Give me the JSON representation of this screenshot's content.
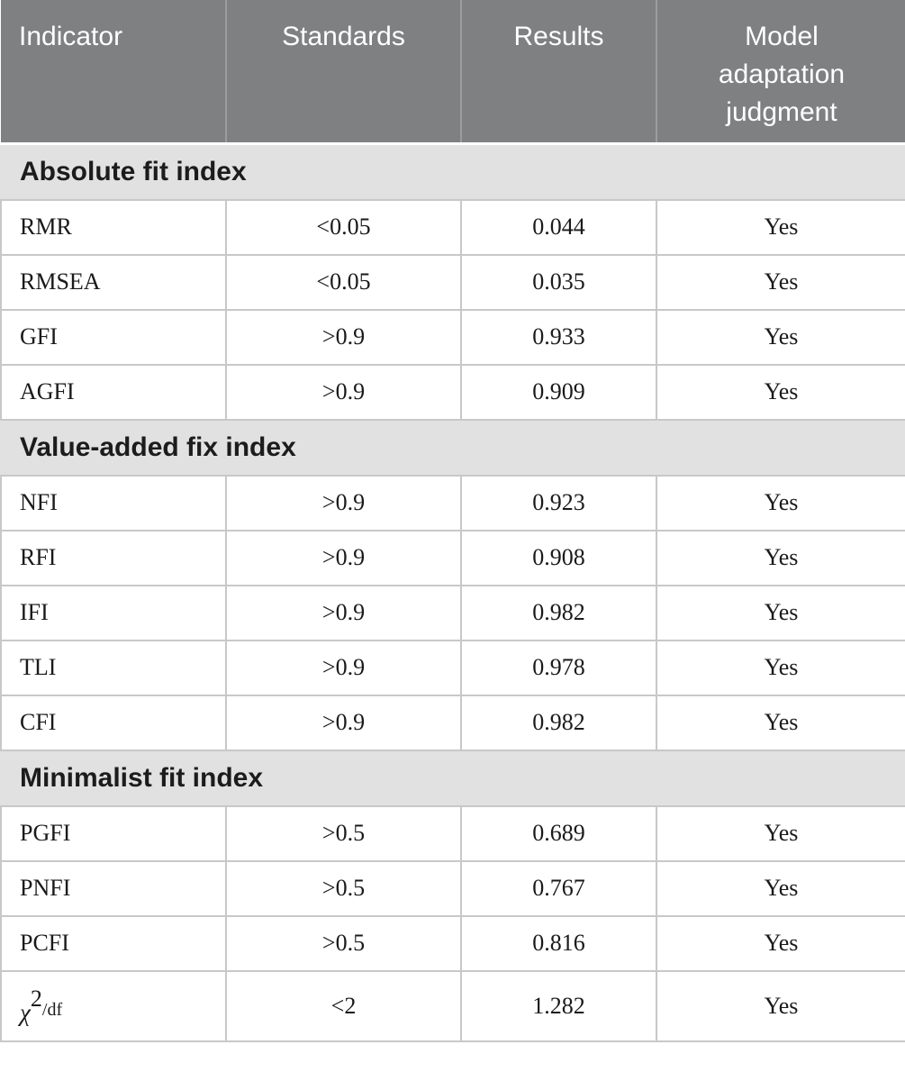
{
  "table": {
    "header": {
      "columns": [
        "Indicator",
        "Standards",
        "Results",
        "Model adaptation judgment"
      ]
    },
    "sections": [
      {
        "title": "Absolute fit index",
        "rows": [
          {
            "indicator": "RMR",
            "standard": "<0.05",
            "result": "0.044",
            "judgment": "Yes"
          },
          {
            "indicator": "RMSEA",
            "standard": "<0.05",
            "result": "0.035",
            "judgment": "Yes"
          },
          {
            "indicator": "GFI",
            "standard": ">0.9",
            "result": "0.933",
            "judgment": "Yes"
          },
          {
            "indicator": "AGFI",
            "standard": ">0.9",
            "result": "0.909",
            "judgment": "Yes"
          }
        ]
      },
      {
        "title": "Value-added fix index",
        "rows": [
          {
            "indicator": "NFI",
            "standard": ">0.9",
            "result": "0.923",
            "judgment": "Yes"
          },
          {
            "indicator": "RFI",
            "standard": ">0.9",
            "result": "0.908",
            "judgment": "Yes"
          },
          {
            "indicator": "IFI",
            "standard": ">0.9",
            "result": "0.982",
            "judgment": "Yes"
          },
          {
            "indicator": "TLI",
            "standard": ">0.9",
            "result": "0.978",
            "judgment": "Yes"
          },
          {
            "indicator": "CFI",
            "standard": ">0.9",
            "result": "0.982",
            "judgment": "Yes"
          }
        ]
      },
      {
        "title": "Minimalist fit index",
        "rows": [
          {
            "indicator": "PGFI",
            "standard": ">0.5",
            "result": "0.689",
            "judgment": "Yes"
          },
          {
            "indicator": "PNFI",
            "standard": ">0.5",
            "result": "0.767",
            "judgment": "Yes"
          },
          {
            "indicator": "PCFI",
            "standard": ">0.5",
            "result": "0.816",
            "judgment": "Yes"
          },
          {
            "indicator": "χ2/df",
            "indicator_math": {
              "base": "χ",
              "sup": "2",
              "suffix": "/df"
            },
            "standard": "<2",
            "result": "1.282",
            "judgment": "Yes",
            "tall": true
          }
        ]
      }
    ]
  },
  "chart_data": {
    "type": "table",
    "title": "Model fit indices",
    "columns": [
      "Indicator",
      "Standards",
      "Results",
      "Model adaptation judgment"
    ],
    "rows": [
      [
        "Absolute fit index",
        "",
        "",
        ""
      ],
      [
        "RMR",
        "<0.05",
        "0.044",
        "Yes"
      ],
      [
        "RMSEA",
        "<0.05",
        "0.035",
        "Yes"
      ],
      [
        "GFI",
        ">0.9",
        "0.933",
        "Yes"
      ],
      [
        "AGFI",
        ">0.9",
        "0.909",
        "Yes"
      ],
      [
        "Value-added fix index",
        "",
        "",
        ""
      ],
      [
        "NFI",
        ">0.9",
        "0.923",
        "Yes"
      ],
      [
        "RFI",
        ">0.9",
        "0.908",
        "Yes"
      ],
      [
        "IFI",
        ">0.9",
        "0.982",
        "Yes"
      ],
      [
        "TLI",
        ">0.9",
        "0.978",
        "Yes"
      ],
      [
        "CFI",
        ">0.9",
        "0.982",
        "Yes"
      ],
      [
        "Minimalist fit index",
        "",
        "",
        ""
      ],
      [
        "PGFI",
        ">0.5",
        "0.689",
        "Yes"
      ],
      [
        "PNFI",
        ">0.5",
        "0.767",
        "Yes"
      ],
      [
        "PCFI",
        ">0.5",
        "0.816",
        "Yes"
      ],
      [
        "χ2/df",
        "<2",
        "1.282",
        "Yes"
      ]
    ]
  },
  "colors": {
    "header_bg": "#7f8082",
    "header_text": "#ffffff",
    "header_divider": "#9b9c9e",
    "section_bg": "#e2e1e1",
    "section_text": "#1c1c1c",
    "row_bg": "#ffffff",
    "row_border": "#c9c8c8",
    "body_text": "#1a1a1a"
  }
}
